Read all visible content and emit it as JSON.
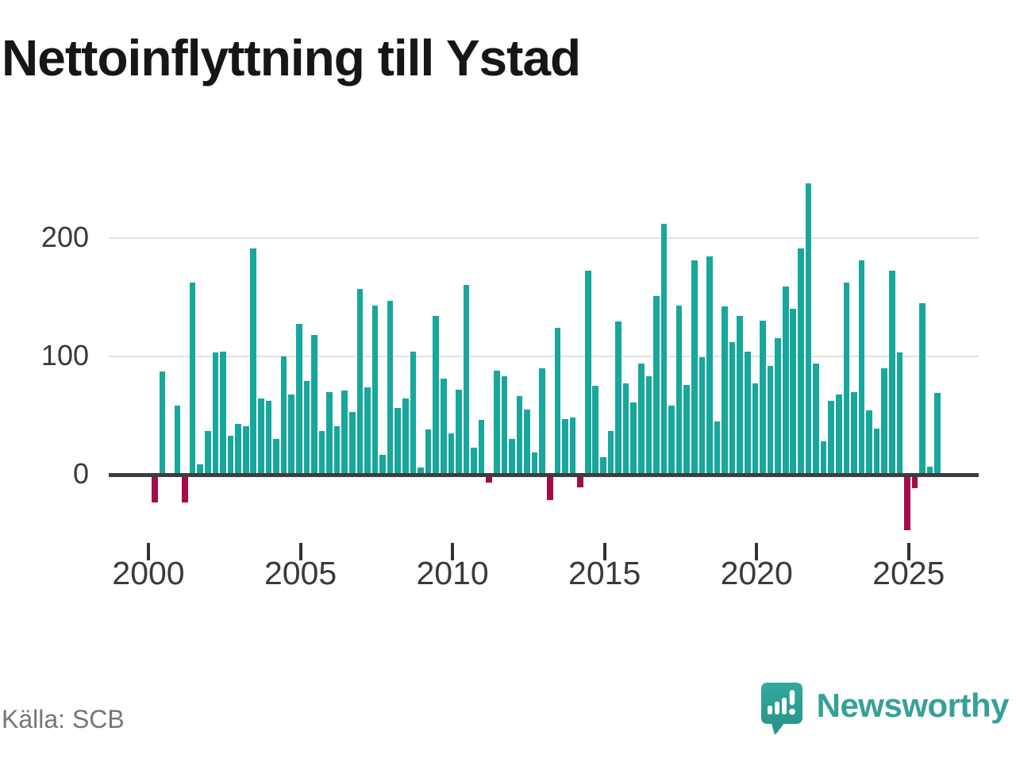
{
  "title": "Nettoinflyttning till Ystad",
  "source": "Källa: SCB",
  "logo": {
    "text": "Newsworthy"
  },
  "colors": {
    "positive_bar": "#17a79c",
    "negative_bar": "#a50b49",
    "axis": "#3d3d3d",
    "grid": "#e3e3e3",
    "tick_label": "#3a3a3a",
    "source_text": "#767676",
    "brand_teal": "#35a198"
  },
  "chart_data": {
    "type": "bar",
    "title": "Nettoinflyttning till Ystad",
    "frequency": "quarterly",
    "start_year": 2000,
    "bars_per_year": 4,
    "values": [
      -23,
      87,
      0,
      58,
      -23,
      162,
      9,
      37,
      103,
      104,
      33,
      43,
      41,
      191,
      64,
      62,
      30,
      100,
      68,
      127,
      79,
      118,
      37,
      70,
      41,
      71,
      53,
      157,
      74,
      143,
      17,
      147,
      56,
      64,
      104,
      6,
      38,
      134,
      81,
      35,
      72,
      160,
      23,
      46,
      -6,
      88,
      83,
      30,
      66,
      55,
      19,
      90,
      -21,
      124,
      47,
      48,
      -10,
      172,
      75,
      15,
      37,
      129,
      77,
      61,
      94,
      83,
      151,
      212,
      58,
      143,
      76,
      181,
      99,
      184,
      45,
      142,
      112,
      134,
      104,
      77,
      130,
      92,
      115,
      159,
      140,
      191,
      246,
      94,
      28,
      62,
      68,
      162,
      70,
      181,
      54,
      39,
      90,
      172,
      103,
      -46,
      -11,
      145,
      7,
      69
    ],
    "x_tick_labels": [
      "2000",
      "2005",
      "2010",
      "2015",
      "2020",
      "2025"
    ],
    "y_ticks": [
      0,
      100,
      200
    ],
    "ylim": [
      -60,
      260
    ],
    "grid": "horizontal",
    "legend": "none"
  }
}
